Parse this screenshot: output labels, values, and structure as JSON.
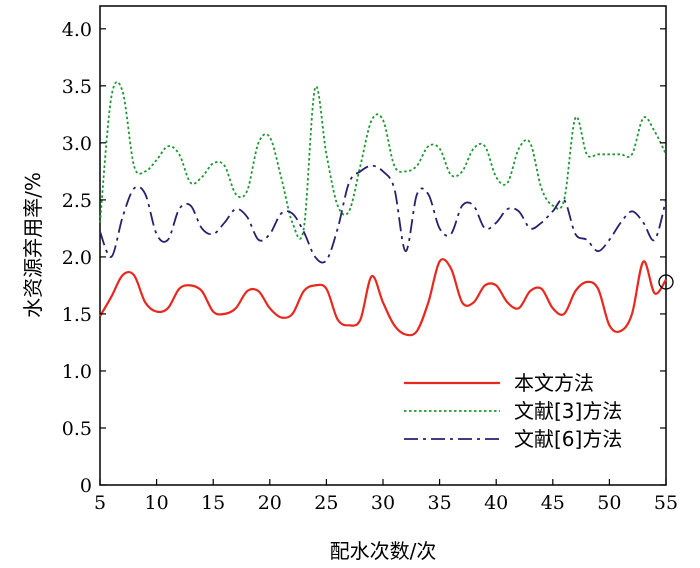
{
  "chart_data": {
    "type": "line",
    "title": "",
    "xlabel": "配水次数/次",
    "ylabel": "水资源弃用率/%",
    "xlim": [
      5,
      55
    ],
    "ylim": [
      0,
      4.2
    ],
    "x_ticks": [
      5,
      10,
      15,
      20,
      25,
      30,
      35,
      40,
      45,
      50,
      55
    ],
    "y_ticks": [
      0,
      0.5,
      1.0,
      1.5,
      2.0,
      2.5,
      3.0,
      3.5,
      4.0
    ],
    "x_tick_labels": [
      "5",
      "10",
      "15",
      "20",
      "25",
      "30",
      "35",
      "40",
      "45",
      "50",
      "55"
    ],
    "y_tick_labels": [
      "0",
      "0.5",
      "1.0",
      "1.5",
      "2.0",
      "2.5",
      "3.0",
      "3.5",
      "4.0"
    ],
    "grid": false,
    "legend_position": "bottom-right",
    "series": [
      {
        "name": "本文方法",
        "color": "#e8281e",
        "style": "solid",
        "x": [
          5,
          6,
          7,
          8,
          9,
          10,
          11,
          12,
          13,
          14,
          15,
          16,
          17,
          18,
          19,
          20,
          21,
          22,
          23,
          24,
          25,
          26,
          27,
          28,
          29,
          30,
          31,
          32,
          33,
          34,
          35,
          36,
          37,
          38,
          39,
          40,
          41,
          42,
          43,
          44,
          45,
          46,
          47,
          48,
          49,
          50,
          51,
          52,
          53,
          54,
          55
        ],
        "y": [
          1.48,
          1.65,
          1.84,
          1.84,
          1.6,
          1.52,
          1.55,
          1.72,
          1.75,
          1.7,
          1.52,
          1.5,
          1.55,
          1.7,
          1.7,
          1.55,
          1.47,
          1.5,
          1.7,
          1.75,
          1.72,
          1.45,
          1.4,
          1.45,
          1.83,
          1.6,
          1.4,
          1.32,
          1.35,
          1.6,
          1.96,
          1.9,
          1.6,
          1.6,
          1.75,
          1.75,
          1.6,
          1.55,
          1.7,
          1.72,
          1.55,
          1.5,
          1.7,
          1.78,
          1.72,
          1.4,
          1.35,
          1.5,
          1.96,
          1.68,
          1.8
        ]
      },
      {
        "name": "文献[3]方法",
        "color": "#1e9632",
        "style": "dotted",
        "x": [
          5,
          6,
          7,
          8,
          9,
          10,
          11,
          12,
          13,
          14,
          15,
          16,
          17,
          18,
          19,
          20,
          21,
          22,
          23,
          24,
          25,
          26,
          27,
          28,
          29,
          30,
          31,
          32,
          33,
          34,
          35,
          36,
          37,
          38,
          39,
          40,
          41,
          42,
          43,
          44,
          45,
          46,
          47,
          48,
          49,
          50,
          51,
          52,
          53,
          54,
          55
        ],
        "y": [
          2.3,
          3.4,
          3.45,
          2.8,
          2.75,
          2.85,
          2.97,
          2.9,
          2.65,
          2.7,
          2.82,
          2.8,
          2.55,
          2.58,
          3.0,
          3.05,
          2.7,
          2.3,
          2.25,
          3.48,
          2.9,
          2.45,
          2.4,
          2.8,
          3.2,
          3.2,
          2.8,
          2.75,
          2.8,
          2.97,
          2.95,
          2.72,
          2.75,
          2.95,
          2.97,
          2.7,
          2.65,
          2.95,
          3.0,
          2.6,
          2.45,
          2.5,
          3.22,
          2.9,
          2.9,
          2.9,
          2.9,
          2.9,
          3.22,
          3.1,
          2.9
        ]
      },
      {
        "name": "文献[6]方法",
        "color": "#2a1f6e",
        "style": "dashdot",
        "x": [
          5,
          6,
          7,
          8,
          9,
          10,
          11,
          12,
          13,
          14,
          15,
          16,
          17,
          18,
          19,
          20,
          21,
          22,
          23,
          24,
          25,
          26,
          27,
          28,
          29,
          30,
          31,
          32,
          33,
          34,
          35,
          36,
          37,
          38,
          39,
          40,
          41,
          42,
          43,
          44,
          45,
          46,
          47,
          48,
          49,
          50,
          51,
          52,
          53,
          54,
          55
        ],
        "y": [
          2.22,
          2.0,
          2.35,
          2.6,
          2.55,
          2.2,
          2.15,
          2.42,
          2.45,
          2.25,
          2.2,
          2.3,
          2.42,
          2.35,
          2.15,
          2.2,
          2.38,
          2.38,
          2.22,
          2.0,
          1.97,
          2.25,
          2.65,
          2.75,
          2.8,
          2.75,
          2.6,
          2.05,
          2.55,
          2.55,
          2.25,
          2.2,
          2.45,
          2.45,
          2.25,
          2.3,
          2.42,
          2.4,
          2.25,
          2.3,
          2.4,
          2.5,
          2.2,
          2.15,
          2.05,
          2.15,
          2.3,
          2.4,
          2.3,
          2.15,
          2.5
        ]
      }
    ]
  }
}
